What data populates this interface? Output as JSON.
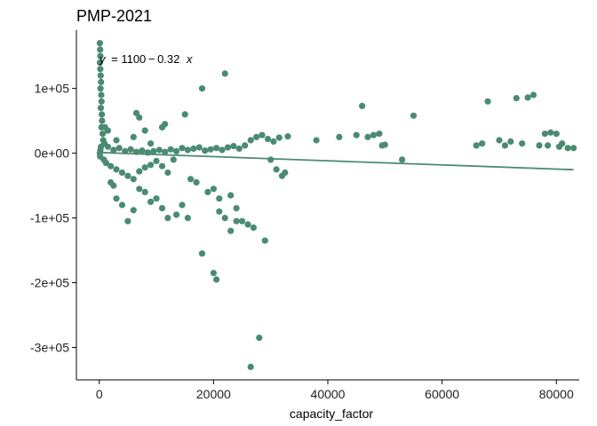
{
  "chart_data": {
    "type": "scatter",
    "title": "PMP-2021",
    "xlabel": "capacity_factor",
    "ylabel": "",
    "xlim": [
      -4000,
      84000
    ],
    "ylim": [
      -350000,
      190000
    ],
    "x_ticks": [
      0,
      20000,
      40000,
      60000,
      80000
    ],
    "x_tick_labels": [
      "0",
      "20000",
      "40000",
      "60000",
      "80000"
    ],
    "y_ticks": [
      100000,
      0,
      -100000,
      -200000,
      -300000
    ],
    "y_tick_labels": [
      "1e+05",
      "0e+00",
      "-1e+05",
      "-2e+05",
      "-3e+05"
    ],
    "grid": false,
    "legend": "none",
    "point_color": "#4a8b71",
    "fit_line": {
      "label_prefix": "y",
      "label_eq": "= 1100 − 0.32",
      "label_var": "x",
      "intercept": 1100,
      "slope": -0.32,
      "x_range": [
        0,
        83000
      ]
    },
    "points": [
      [
        100,
        170000
      ],
      [
        150,
        160000
      ],
      [
        200,
        150000
      ],
      [
        120,
        140000
      ],
      [
        180,
        130000
      ],
      [
        250,
        120000
      ],
      [
        300,
        110000
      ],
      [
        220,
        100000
      ],
      [
        350,
        90000
      ],
      [
        400,
        80000
      ],
      [
        280,
        70000
      ],
      [
        450,
        60000
      ],
      [
        500,
        50000
      ],
      [
        380,
        40000
      ],
      [
        600,
        30000
      ],
      [
        700,
        20000
      ],
      [
        900,
        15000
      ],
      [
        300,
        10000
      ],
      [
        200,
        5000
      ],
      [
        100,
        0
      ],
      [
        150,
        -5000
      ],
      [
        800,
        -10000
      ],
      [
        1200,
        -15000
      ],
      [
        2000,
        -20000
      ],
      [
        3000,
        -25000
      ],
      [
        4000,
        -30000
      ],
      [
        5000,
        -35000
      ],
      [
        6000,
        -40000
      ],
      [
        7000,
        -28000
      ],
      [
        8000,
        -22000
      ],
      [
        9000,
        -18000
      ],
      [
        10000,
        -12000
      ],
      [
        11000,
        -20000
      ],
      [
        12000,
        -30000
      ],
      [
        13000,
        -10000
      ],
      [
        1500,
        10000
      ],
      [
        2500,
        5000
      ],
      [
        3500,
        8000
      ],
      [
        4500,
        3000
      ],
      [
        5500,
        6000
      ],
      [
        6500,
        2000
      ],
      [
        7500,
        4000
      ],
      [
        8500,
        1000
      ],
      [
        9500,
        3000
      ],
      [
        10500,
        5000
      ],
      [
        11500,
        2000
      ],
      [
        12500,
        6000
      ],
      [
        13500,
        3000
      ],
      [
        14500,
        8000
      ],
      [
        15500,
        5000
      ],
      [
        16500,
        7000
      ],
      [
        17500,
        9000
      ],
      [
        18500,
        4000
      ],
      [
        19500,
        6000
      ],
      [
        20500,
        8000
      ],
      [
        21500,
        5000
      ],
      [
        22500,
        9000
      ],
      [
        23500,
        11000
      ],
      [
        24500,
        7000
      ],
      [
        25500,
        12000
      ],
      [
        26500,
        20000
      ],
      [
        27500,
        25000
      ],
      [
        28500,
        28000
      ],
      [
        29500,
        22000
      ],
      [
        30500,
        18000
      ],
      [
        31500,
        24000
      ],
      [
        33000,
        26000
      ],
      [
        1000,
        40000
      ],
      [
        1500,
        35000
      ],
      [
        3000,
        20000
      ],
      [
        6000,
        25000
      ],
      [
        9000,
        15000
      ],
      [
        11000,
        40000
      ],
      [
        11500,
        45000
      ],
      [
        7000,
        55000
      ],
      [
        8000,
        35000
      ],
      [
        15000,
        60000
      ],
      [
        18000,
        100000
      ],
      [
        22000,
        123000
      ],
      [
        6500,
        62000
      ],
      [
        30000,
        -10000
      ],
      [
        31000,
        -25000
      ],
      [
        32000,
        -35000
      ],
      [
        32500,
        -30000
      ],
      [
        20000,
        -55000
      ],
      [
        21000,
        -70000
      ],
      [
        23000,
        -65000
      ],
      [
        24000,
        -85000
      ],
      [
        25000,
        -105000
      ],
      [
        19000,
        -60000
      ],
      [
        17000,
        -45000
      ],
      [
        16000,
        -40000
      ],
      [
        14500,
        -80000
      ],
      [
        13500,
        -95000
      ],
      [
        12000,
        -100000
      ],
      [
        11000,
        -85000
      ],
      [
        10000,
        -70000
      ],
      [
        9000,
        -75000
      ],
      [
        8000,
        -60000
      ],
      [
        7000,
        -55000
      ],
      [
        6000,
        -88000
      ],
      [
        5000,
        -105000
      ],
      [
        4000,
        -80000
      ],
      [
        3000,
        -70000
      ],
      [
        2500,
        -50000
      ],
      [
        2000,
        -45000
      ],
      [
        18000,
        -155000
      ],
      [
        20000,
        -185000
      ],
      [
        20500,
        -195000
      ],
      [
        24000,
        -105000
      ],
      [
        26000,
        -110000
      ],
      [
        27000,
        -115000
      ],
      [
        28000,
        -285000
      ],
      [
        26500,
        -330000
      ],
      [
        29000,
        -135000
      ],
      [
        23000,
        -120000
      ],
      [
        22000,
        -100000
      ],
      [
        21000,
        -90000
      ],
      [
        15500,
        -100000
      ],
      [
        38000,
        20000
      ],
      [
        42000,
        25000
      ],
      [
        45000,
        28000
      ],
      [
        46000,
        73000
      ],
      [
        47000,
        25000
      ],
      [
        48000,
        28000
      ],
      [
        49000,
        30000
      ],
      [
        49500,
        12000
      ],
      [
        50000,
        13000
      ],
      [
        53000,
        -10000
      ],
      [
        55000,
        58000
      ],
      [
        66000,
        12000
      ],
      [
        67000,
        15000
      ],
      [
        68000,
        80000
      ],
      [
        70000,
        20000
      ],
      [
        71000,
        12000
      ],
      [
        72000,
        18000
      ],
      [
        73000,
        85000
      ],
      [
        74000,
        15000
      ],
      [
        75000,
        86000
      ],
      [
        76000,
        90000
      ],
      [
        77000,
        12000
      ],
      [
        78000,
        30000
      ],
      [
        79000,
        32000
      ],
      [
        80000,
        30000
      ],
      [
        81000,
        15000
      ],
      [
        82000,
        8000
      ],
      [
        83000,
        8000
      ],
      [
        80500,
        10000
      ],
      [
        78500,
        12000
      ]
    ]
  }
}
